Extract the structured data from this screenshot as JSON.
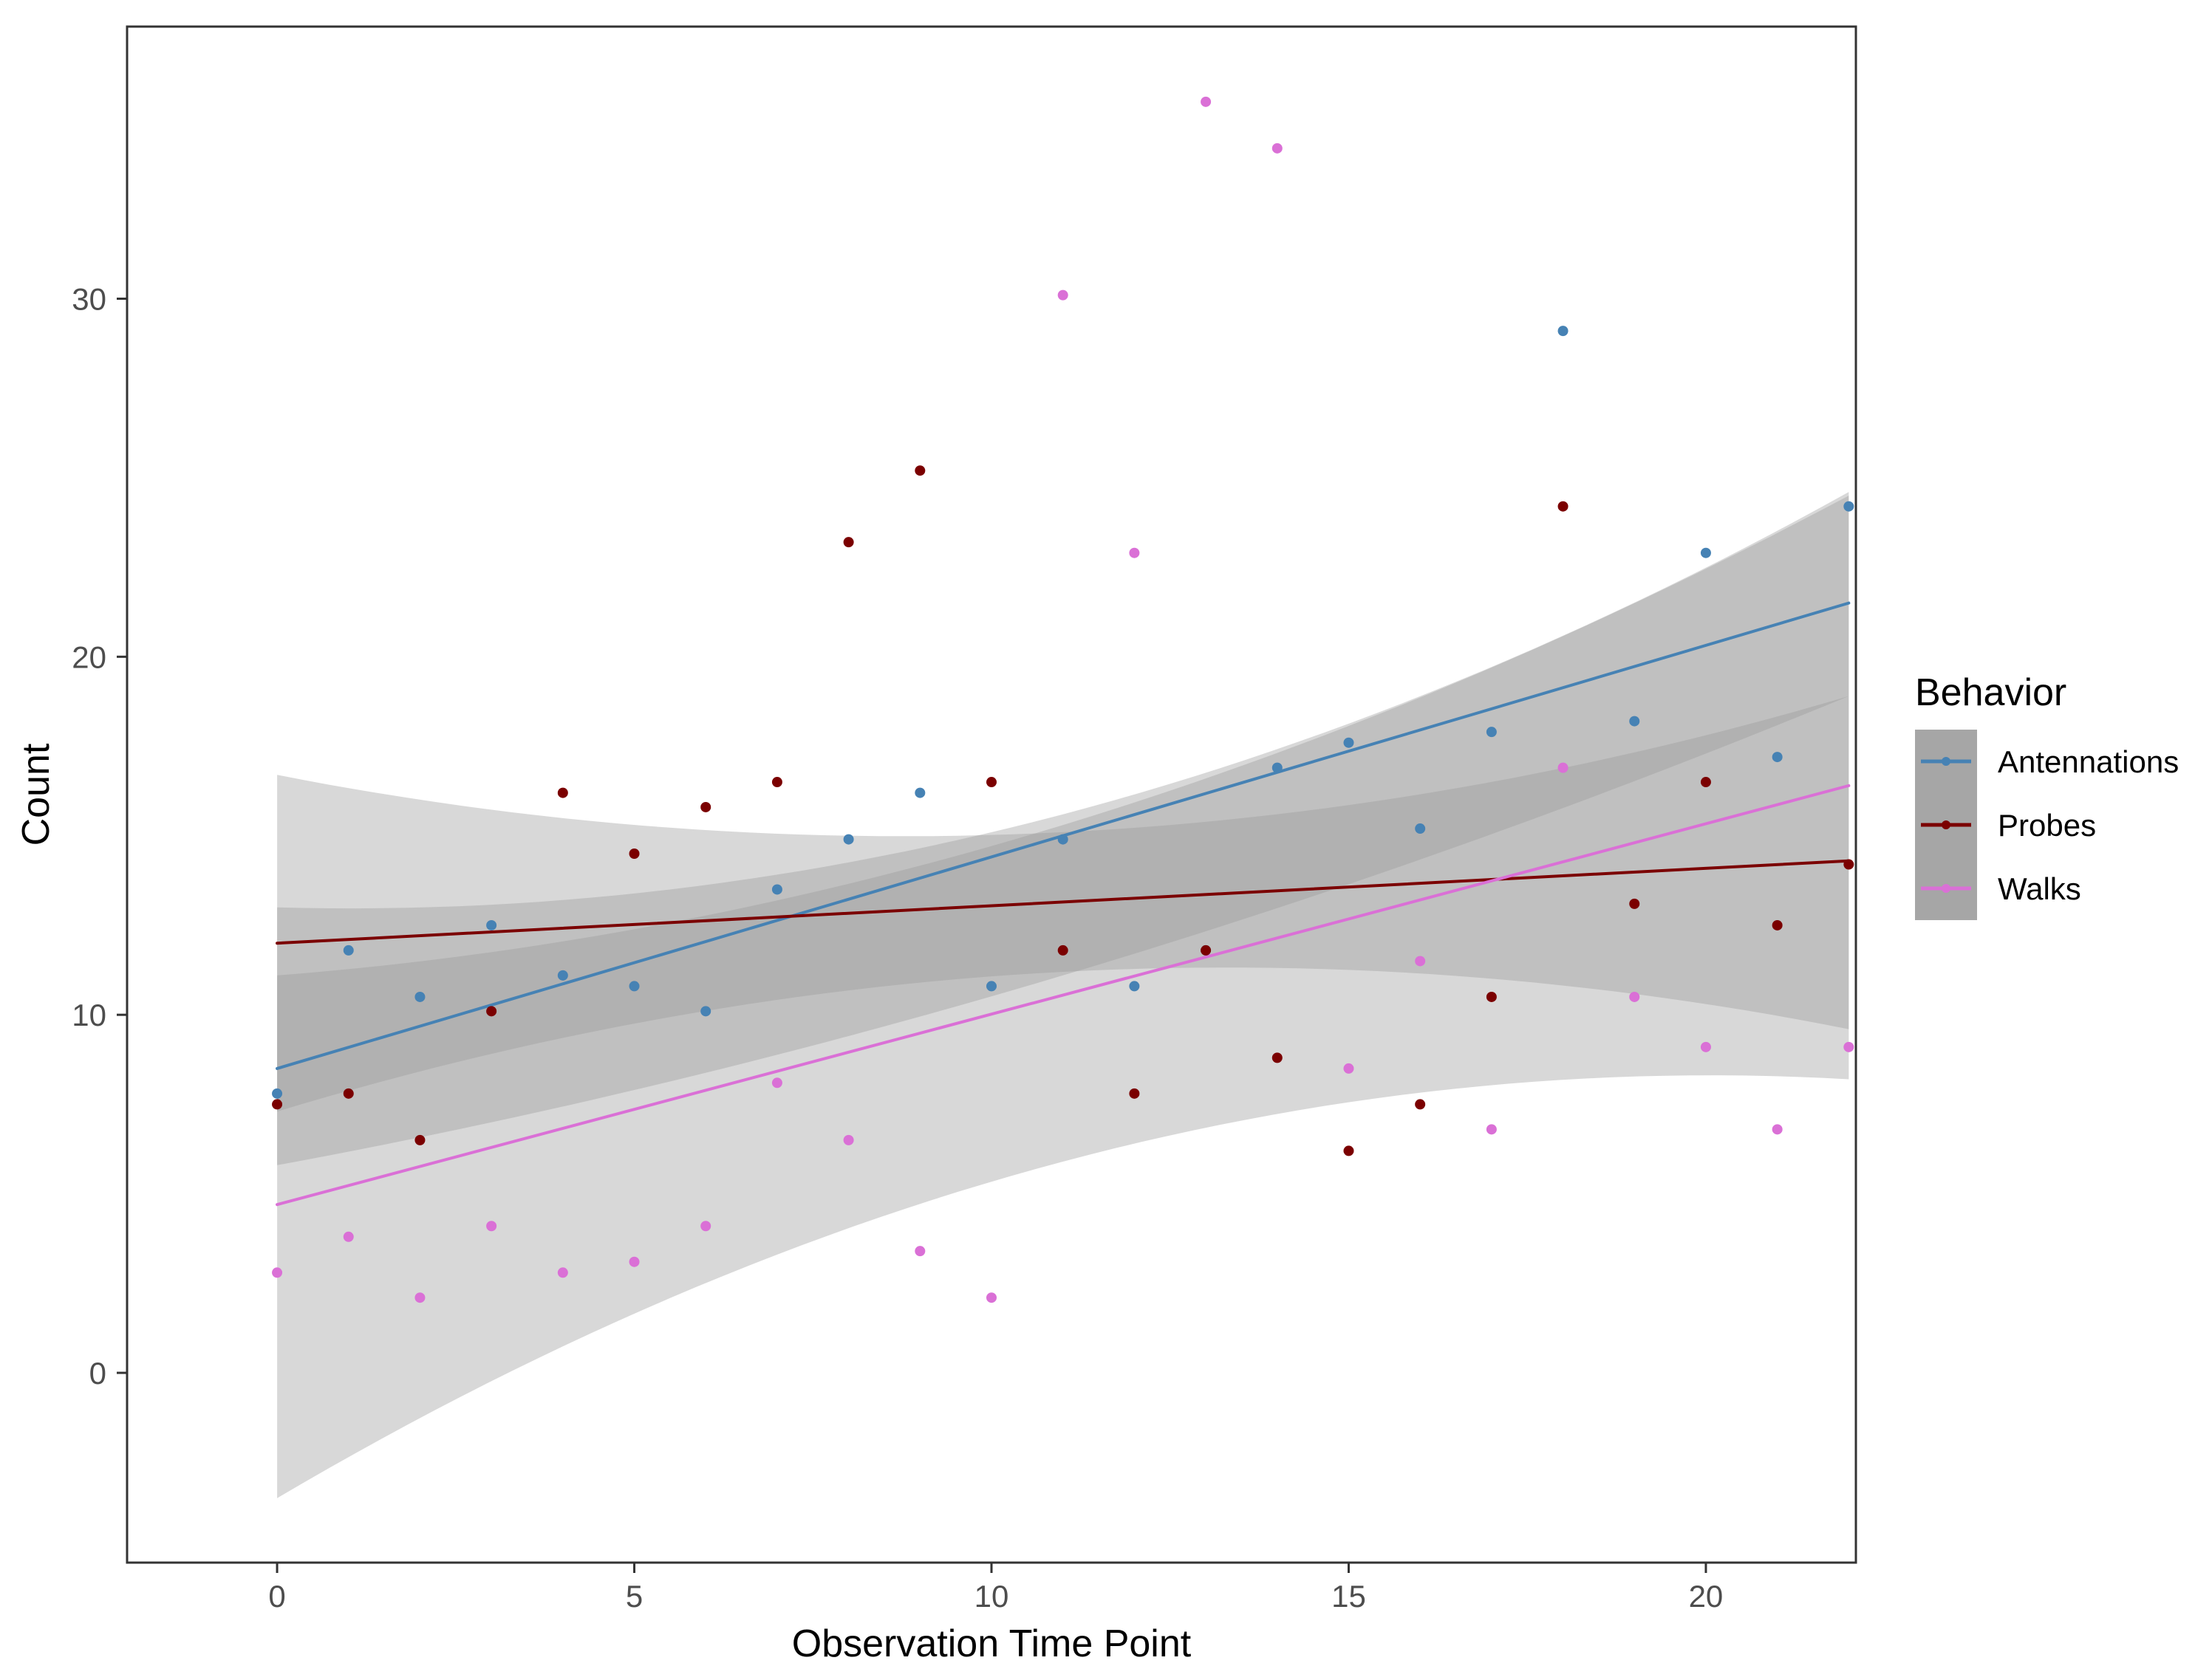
{
  "chart_data": {
    "type": "scatter",
    "xlabel": "Observation Time Point",
    "ylabel": "Count",
    "xlim": [
      -2.1,
      22.1
    ],
    "ylim": [
      -5.3,
      37.6
    ],
    "xticks": [
      0,
      5,
      10,
      15,
      20
    ],
    "yticks": [
      0,
      10,
      20,
      30
    ],
    "grid": false,
    "legend": {
      "title": "Behavior",
      "position": "right"
    },
    "series": [
      {
        "name": "Antennations",
        "color": "#4682B4",
        "points": [
          [
            0,
            7.8
          ],
          [
            1,
            11.8
          ],
          [
            2,
            10.5
          ],
          [
            3,
            12.5
          ],
          [
            4,
            11.1
          ],
          [
            5,
            10.8
          ],
          [
            6,
            10.1
          ],
          [
            7,
            13.5
          ],
          [
            8,
            14.9
          ],
          [
            9,
            16.2
          ],
          [
            10,
            10.8
          ],
          [
            11,
            14.9
          ],
          [
            12,
            10.8
          ],
          [
            13,
            11.8
          ],
          [
            14,
            16.9
          ],
          [
            15,
            17.6
          ],
          [
            16,
            15.2
          ],
          [
            17,
            17.9
          ],
          [
            18,
            29.1
          ],
          [
            19,
            18.2
          ],
          [
            20,
            22.9
          ],
          [
            21,
            17.2
          ],
          [
            22,
            24.2
          ]
        ],
        "fit": {
          "start": 8.5,
          "end": 21.5,
          "ci_low_start": 5.8,
          "ci_low_mid": 11.1,
          "ci_low_end": 18.9,
          "ci_high_start": 11.1,
          "ci_high_mid": 15.3,
          "ci_high_end": 24.5
        }
      },
      {
        "name": "Probes",
        "color": "#7B0000",
        "points": [
          [
            0,
            7.5
          ],
          [
            1,
            7.8
          ],
          [
            2,
            6.5
          ],
          [
            3,
            10.1
          ],
          [
            4,
            16.2
          ],
          [
            5,
            14.5
          ],
          [
            6,
            15.8
          ],
          [
            7,
            16.5
          ],
          [
            8,
            23.2
          ],
          [
            9,
            25.2
          ],
          [
            10,
            16.5
          ],
          [
            11,
            11.8
          ],
          [
            12,
            7.8
          ],
          [
            13,
            11.8
          ],
          [
            14,
            8.8
          ],
          [
            15,
            6.2
          ],
          [
            16,
            7.5
          ],
          [
            17,
            10.5
          ],
          [
            18,
            24.2
          ],
          [
            19,
            13.1
          ],
          [
            20,
            16.5
          ],
          [
            21,
            12.5
          ],
          [
            22,
            14.2
          ]
        ],
        "fit": {
          "start": 12.0,
          "end": 14.3,
          "ci_low_start": 7.3,
          "ci_low_mid": 11.2,
          "ci_low_end": 9.6,
          "ci_high_start": 16.7,
          "ci_high_mid": 15.1,
          "ci_high_end": 18.9
        }
      },
      {
        "name": "Walks",
        "color": "#DA70D6",
        "points": [
          [
            0,
            2.8
          ],
          [
            1,
            3.8
          ],
          [
            2,
            2.1
          ],
          [
            3,
            4.1
          ],
          [
            4,
            2.8
          ],
          [
            5,
            3.1
          ],
          [
            6,
            4.1
          ],
          [
            7,
            8.1
          ],
          [
            8,
            6.5
          ],
          [
            9,
            3.4
          ],
          [
            10,
            2.1
          ],
          [
            11,
            30.1
          ],
          [
            12,
            22.9
          ],
          [
            13,
            35.5
          ],
          [
            14,
            34.2
          ],
          [
            15,
            8.5
          ],
          [
            16,
            11.5
          ],
          [
            17,
            6.8
          ],
          [
            18,
            16.9
          ],
          [
            19,
            10.5
          ],
          [
            20,
            9.1
          ],
          [
            21,
            6.8
          ],
          [
            22,
            9.1
          ]
        ],
        "fit": {
          "start": 4.7,
          "end": 16.4,
          "ci_low_start": -3.5,
          "ci_low_mid": 5.9,
          "ci_low_end": 8.2,
          "ci_high_start": 13.0,
          "ci_high_mid": 15.6,
          "ci_high_end": 24.6
        }
      }
    ]
  }
}
